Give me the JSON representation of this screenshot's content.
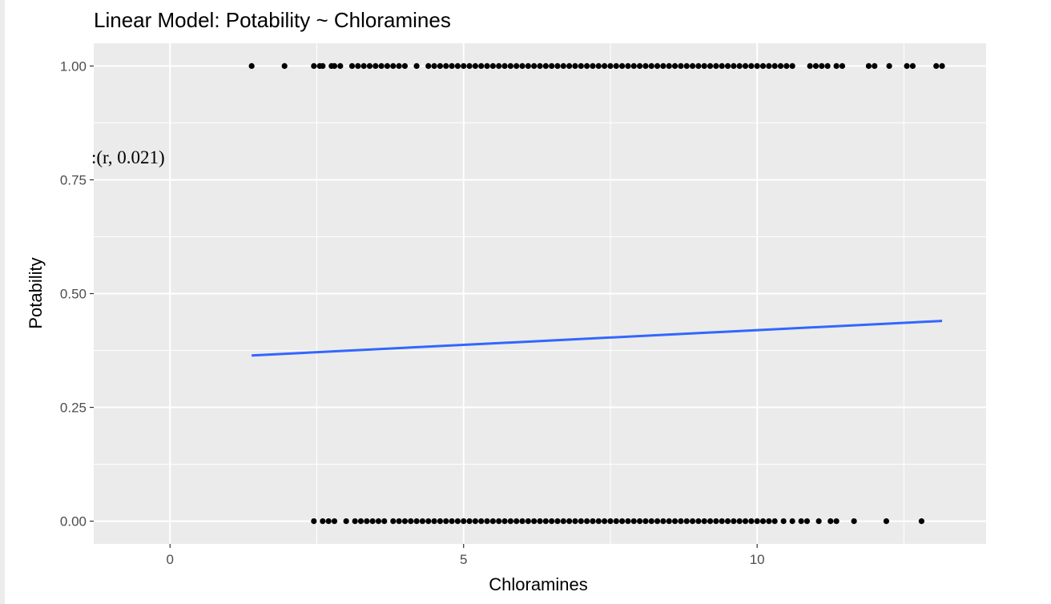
{
  "chart_data": {
    "type": "scatter",
    "title": "Linear Model: Potability ~ Chloramines",
    "xlabel": "Chloramines",
    "ylabel": "Potability",
    "xlim": [
      -1.3,
      13.9
    ],
    "ylim": [
      -0.05,
      1.05
    ],
    "x_ticks": [
      0,
      5,
      10
    ],
    "x_tick_labels": [
      "0",
      "5",
      "10"
    ],
    "y_ticks": [
      0,
      0.25,
      0.5,
      0.75,
      1.0
    ],
    "y_tick_labels": [
      "0.00",
      "0.25",
      "0.50",
      "0.75",
      "1.00"
    ],
    "grid": true,
    "annotation": ":(r, 0.021)",
    "point_color": "#000000",
    "line_color": "#3366ff",
    "panel_color": "#ebebeb",
    "grid_color": "#ffffff",
    "points_y1": [
      1.39,
      1.95,
      2.45,
      2.55,
      2.6,
      2.75,
      2.8,
      2.9,
      3.1,
      3.2,
      3.3,
      3.4,
      3.5,
      3.6,
      3.7,
      3.8,
      3.9,
      4.0,
      4.2,
      4.4,
      4.5,
      4.6,
      4.7,
      4.8,
      4.9,
      5.0,
      5.1,
      5.2,
      5.3,
      5.4,
      5.5,
      5.6,
      5.7,
      5.8,
      5.9,
      6.0,
      6.1,
      6.2,
      6.3,
      6.4,
      6.5,
      6.6,
      6.7,
      6.8,
      6.9,
      7.0,
      7.1,
      7.2,
      7.3,
      7.4,
      7.5,
      7.6,
      7.7,
      7.8,
      7.9,
      8.0,
      8.1,
      8.2,
      8.3,
      8.4,
      8.5,
      8.6,
      8.7,
      8.8,
      8.9,
      9.0,
      9.1,
      9.2,
      9.3,
      9.4,
      9.5,
      9.6,
      9.7,
      9.8,
      9.9,
      10.0,
      10.1,
      10.2,
      10.3,
      10.4,
      10.5,
      10.6,
      10.9,
      11.0,
      11.1,
      11.2,
      11.35,
      11.45,
      11.9,
      12.0,
      12.25,
      12.55,
      12.65,
      13.05,
      13.15
    ],
    "points_y0": [
      2.45,
      2.6,
      2.7,
      2.8,
      3.0,
      3.15,
      3.25,
      3.35,
      3.45,
      3.55,
      3.65,
      3.8,
      3.9,
      4.0,
      4.1,
      4.2,
      4.3,
      4.4,
      4.5,
      4.6,
      4.7,
      4.8,
      4.9,
      5.0,
      5.1,
      5.2,
      5.3,
      5.4,
      5.5,
      5.6,
      5.7,
      5.8,
      5.9,
      6.0,
      6.1,
      6.2,
      6.3,
      6.4,
      6.5,
      6.6,
      6.7,
      6.8,
      6.9,
      7.0,
      7.1,
      7.2,
      7.3,
      7.4,
      7.5,
      7.6,
      7.7,
      7.8,
      7.9,
      8.0,
      8.1,
      8.2,
      8.3,
      8.4,
      8.5,
      8.6,
      8.7,
      8.8,
      8.9,
      9.0,
      9.1,
      9.2,
      9.3,
      9.4,
      9.5,
      9.6,
      9.7,
      9.8,
      9.9,
      10.0,
      10.1,
      10.2,
      10.3,
      10.45,
      10.6,
      10.75,
      10.85,
      11.05,
      11.25,
      11.35,
      11.65,
      12.2,
      12.8
    ],
    "fit_line": {
      "x": [
        1.39,
        13.15
      ],
      "y": [
        0.364,
        0.44
      ]
    }
  }
}
